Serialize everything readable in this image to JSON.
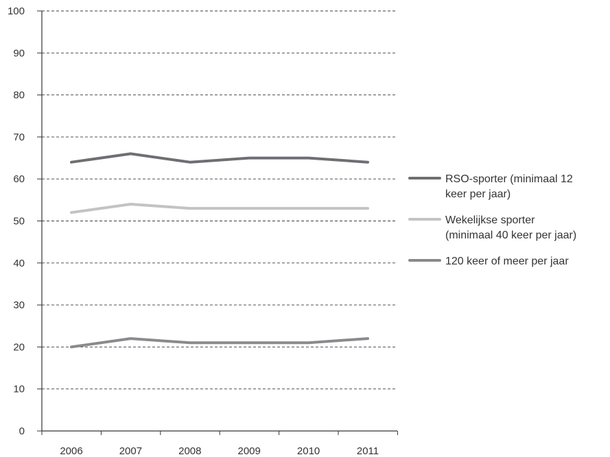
{
  "chart_data": {
    "type": "line",
    "title": "",
    "xlabel": "",
    "ylabel": "",
    "x": [
      "2006",
      "2007",
      "2008",
      "2009",
      "2010",
      "2011"
    ],
    "ylim": [
      0,
      100
    ],
    "yticks": [
      "0",
      "10",
      "20",
      "30",
      "40",
      "50",
      "60",
      "70",
      "80",
      "90",
      "100"
    ],
    "grid": "horizontal dashed",
    "legend_position": "right",
    "series": [
      {
        "name_lines": [
          "RSO-sporter (minimaal 12",
          "keer per jaar)"
        ],
        "color": "#6e6e73",
        "values": [
          64,
          66,
          64,
          65,
          65,
          64
        ]
      },
      {
        "name_lines": [
          "Wekelijkse sporter",
          "(minimaal 40 keer per jaar)"
        ],
        "color": "#c3c3c5",
        "values": [
          52,
          54,
          53,
          53,
          53,
          53
        ]
      },
      {
        "name_lines": [
          "120 keer of meer per jaar"
        ],
        "color": "#8a8a8e",
        "values": [
          20,
          22,
          21,
          21,
          21,
          22
        ]
      }
    ]
  }
}
